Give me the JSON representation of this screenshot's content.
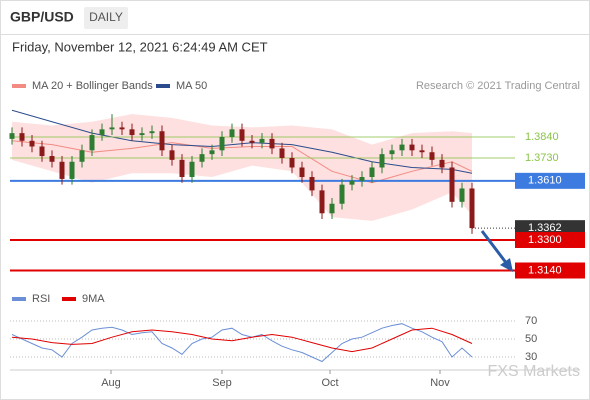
{
  "header": {
    "symbol": "GBP/USD",
    "period": "DAILY",
    "timestamp": "Friday, November 12, 2021 6:24:49 AM CET",
    "credit": "Research © 2021 Trading Central",
    "watermark": "FXS Markets"
  },
  "chart_data": [
    {
      "type": "candlestick",
      "legend": [
        {
          "name": "MA 20 + Bollinger Bands",
          "color": "#f28b82"
        },
        {
          "name": "MA 50",
          "color": "#2b4c8c"
        }
      ],
      "xlim": [
        -0.2,
        56.8
      ],
      "xticks": [
        {
          "value": 9.9,
          "label": "Aug"
        },
        {
          "value": 21,
          "label": "Sep"
        },
        {
          "value": 31.8,
          "label": "Oct"
        },
        {
          "value": 42.8,
          "label": "Nov"
        }
      ],
      "ylim": [
        1.3064,
        1.406
      ],
      "up_color": "#2e7d32",
      "down_color": "#8b1a1a",
      "open": [
        1.383,
        1.386,
        1.382,
        1.379,
        1.374,
        1.371,
        1.362,
        1.371,
        1.377,
        1.385,
        1.388,
        1.389,
        1.388,
        1.385,
        1.386,
        1.387,
        1.377,
        1.372,
        1.363,
        1.371,
        1.375,
        1.377,
        1.384,
        1.388,
        1.382,
        1.381,
        1.383,
        1.378,
        1.373,
        1.368,
        1.363,
        1.356,
        1.344,
        1.349,
        1.359,
        1.361,
        1.363,
        1.368,
        1.375,
        1.377,
        1.38,
        1.377,
        1.376,
        1.372,
        1.368,
        1.35,
        1.357
      ],
      "high": [
        1.389,
        1.389,
        1.385,
        1.382,
        1.377,
        1.374,
        1.374,
        1.38,
        1.388,
        1.391,
        1.396,
        1.392,
        1.391,
        1.389,
        1.39,
        1.39,
        1.38,
        1.375,
        1.374,
        1.378,
        1.38,
        1.387,
        1.391,
        1.391,
        1.385,
        1.386,
        1.386,
        1.381,
        1.376,
        1.371,
        1.366,
        1.359,
        1.352,
        1.362,
        1.364,
        1.366,
        1.371,
        1.378,
        1.38,
        1.383,
        1.383,
        1.38,
        1.379,
        1.375,
        1.371,
        1.36,
        1.36
      ],
      "low": [
        1.38,
        1.379,
        1.376,
        1.371,
        1.368,
        1.359,
        1.359,
        1.368,
        1.374,
        1.382,
        1.385,
        1.385,
        1.382,
        1.382,
        1.383,
        1.374,
        1.369,
        1.36,
        1.36,
        1.368,
        1.372,
        1.374,
        1.381,
        1.379,
        1.378,
        1.378,
        1.375,
        1.37,
        1.365,
        1.36,
        1.353,
        1.341,
        1.341,
        1.346,
        1.356,
        1.358,
        1.36,
        1.365,
        1.372,
        1.374,
        1.374,
        1.373,
        1.369,
        1.365,
        1.347,
        1.347,
        1.3332
      ],
      "close": [
        1.386,
        1.382,
        1.379,
        1.374,
        1.371,
        1.362,
        1.371,
        1.377,
        1.385,
        1.388,
        1.389,
        1.388,
        1.385,
        1.386,
        1.387,
        1.377,
        1.372,
        1.363,
        1.371,
        1.375,
        1.377,
        1.384,
        1.388,
        1.382,
        1.381,
        1.383,
        1.378,
        1.373,
        1.368,
        1.363,
        1.356,
        1.344,
        1.349,
        1.359,
        1.361,
        1.363,
        1.368,
        1.375,
        1.377,
        1.38,
        1.377,
        1.376,
        1.372,
        1.368,
        1.35,
        1.357,
        1.3362
      ],
      "band_x": [
        0,
        4,
        8,
        12,
        16,
        20,
        24,
        28,
        32,
        36,
        40,
        44,
        46
      ],
      "band_upper": [
        1.392,
        1.39,
        1.392,
        1.396,
        1.394,
        1.39,
        1.389,
        1.39,
        1.388,
        1.38,
        1.386,
        1.387,
        1.386
      ],
      "band_lower": [
        1.372,
        1.366,
        1.36,
        1.365,
        1.365,
        1.363,
        1.369,
        1.366,
        1.342,
        1.34,
        1.346,
        1.355,
        1.343
      ],
      "ma20": [
        1.382,
        1.38,
        1.376,
        1.378,
        1.381,
        1.378,
        1.379,
        1.379,
        1.366,
        1.36,
        1.366,
        1.371,
        1.366
      ],
      "ma50": [
        1.398,
        1.392,
        1.386,
        1.382,
        1.38,
        1.379,
        1.381,
        1.38,
        1.376,
        1.371,
        1.368,
        1.367,
        1.365
      ],
      "band_color": "#fde0df",
      "levels": [
        {
          "value": 1.384,
          "label": "1.3840",
          "color": "#8bc34a",
          "style": "resistance"
        },
        {
          "value": 1.373,
          "label": "1.3730",
          "color": "#8bc34a",
          "style": "resistance"
        },
        {
          "value": 1.361,
          "label": "1.3610",
          "color": "#3d7be0",
          "style": "pivot"
        },
        {
          "value": 1.3362,
          "label": "1.3362",
          "color": "#333333",
          "style": "last"
        },
        {
          "value": 1.33,
          "label": "1.3300",
          "color": "#e00000",
          "style": "support"
        },
        {
          "value": 1.314,
          "label": "1.3140",
          "color": "#e00000",
          "style": "support"
        }
      ]
    },
    {
      "type": "line",
      "series": [
        {
          "name": "RSI",
          "color": "#6b8fd6",
          "x": [
            0,
            1,
            2,
            3,
            4,
            5,
            6,
            7,
            8,
            9,
            10,
            11,
            12,
            13,
            14,
            15,
            16,
            17,
            18,
            19,
            20,
            21,
            22,
            23,
            24,
            25,
            26,
            27,
            28,
            29,
            30,
            31,
            32,
            33,
            34,
            35,
            36,
            37,
            38,
            39,
            40,
            41,
            42,
            43,
            44,
            45,
            46
          ],
          "values": [
            55,
            50,
            45,
            40,
            38,
            30,
            45,
            52,
            60,
            62,
            63,
            60,
            55,
            57,
            58,
            45,
            40,
            33,
            45,
            50,
            52,
            60,
            62,
            55,
            52,
            55,
            48,
            42,
            38,
            35,
            30,
            25,
            35,
            45,
            50,
            52,
            57,
            62,
            65,
            67,
            62,
            58,
            52,
            47,
            30,
            40,
            30
          ]
        },
        {
          "name": "9MA",
          "color": "#e00000",
          "x": [
            0,
            2,
            4,
            6,
            8,
            10,
            12,
            14,
            16,
            18,
            20,
            22,
            24,
            26,
            28,
            30,
            32,
            34,
            36,
            38,
            40,
            42,
            44,
            46
          ],
          "values": [
            52,
            50,
            46,
            44,
            45,
            52,
            58,
            60,
            58,
            55,
            50,
            48,
            52,
            55,
            52,
            46,
            40,
            36,
            40,
            50,
            60,
            62,
            55,
            45
          ]
        }
      ],
      "ylim": [
        20,
        80
      ],
      "yticks": [
        70,
        50,
        30
      ]
    }
  ]
}
